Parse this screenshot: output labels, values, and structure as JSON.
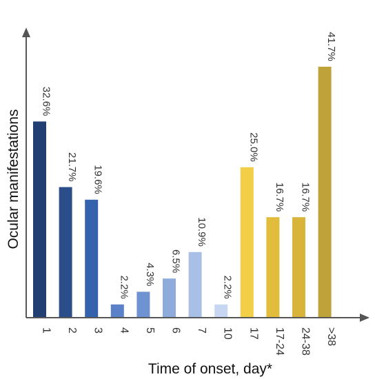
{
  "chart_data": {
    "type": "bar",
    "title": "",
    "xlabel": "Time of onset, day*",
    "ylabel": "Ocular manifestations",
    "ylim": [
      0,
      45
    ],
    "grid": false,
    "categories": [
      "1",
      "2",
      "3",
      "4",
      "5",
      "6",
      "7",
      "10",
      "17",
      "17-24",
      "24-38",
      ">38"
    ],
    "values": [
      32.6,
      21.7,
      19.6,
      2.2,
      4.3,
      6.5,
      10.9,
      2.2,
      25.0,
      16.7,
      16.7,
      41.7
    ],
    "value_labels": [
      "32.6%",
      "21.7%",
      "19.6%",
      "2.2%",
      "4.3%",
      "6.5%",
      "10.9%",
      "2.2%",
      "25.0%",
      "16.7%",
      "16.7%",
      "41.7%"
    ],
    "colors": [
      "#223f73",
      "#2b4d8a",
      "#3462ad",
      "#5b82c9",
      "#6f93d2",
      "#8eabdc",
      "#a8c0e6",
      "#c7d7f1",
      "#f2cf47",
      "#e2bd3c",
      "#d9b43a",
      "#bfa23a"
    ]
  }
}
